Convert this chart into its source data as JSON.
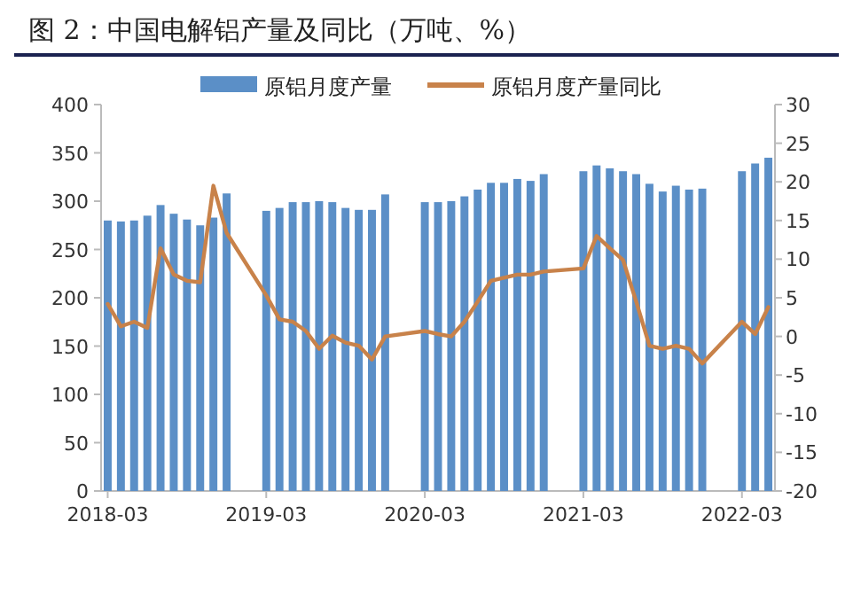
{
  "chart_data": {
    "type": "bar",
    "title": "图 2：中国电解铝产量及同比（万吨、%）",
    "categories": [
      "2018-03",
      null,
      null,
      null,
      null,
      null,
      null,
      null,
      null,
      null,
      null,
      null,
      "2019-03",
      null,
      null,
      null,
      null,
      null,
      null,
      null,
      null,
      null,
      null,
      null,
      "2020-03",
      null,
      null,
      null,
      null,
      null,
      null,
      null,
      null,
      null,
      null,
      null,
      "2021-03",
      null,
      null,
      null,
      null,
      null,
      null,
      null,
      null,
      null,
      null,
      null,
      "2022-03",
      null,
      null
    ],
    "series": [
      {
        "name": "原铝月度产量",
        "type": "bar",
        "color": "#5b8fc7",
        "values": [
          280,
          279,
          280,
          285,
          296,
          287,
          281,
          275,
          283,
          308,
          null,
          null,
          290,
          293,
          299,
          299,
          300,
          299,
          293,
          291,
          291,
          307,
          null,
          null,
          299,
          299,
          300,
          305,
          312,
          319,
          319,
          323,
          321,
          328,
          null,
          null,
          331,
          337,
          334,
          331,
          328,
          318,
          310,
          316,
          312,
          313,
          null,
          null,
          331,
          339,
          345
        ]
      },
      {
        "name": "原铝月度产量同比",
        "type": "line",
        "axis": "y2",
        "color": "#c8824a",
        "values": [
          4.2,
          1.3,
          1.9,
          1.1,
          11.4,
          8.0,
          7.2,
          7.0,
          19.5,
          13.4,
          null,
          null,
          5.3,
          2.2,
          1.9,
          0.7,
          -1.6,
          0.1,
          -0.8,
          -1.2,
          -3.0,
          0.0,
          null,
          null,
          0.7,
          0.3,
          0.0,
          1.9,
          4.5,
          7.2,
          7.6,
          8.0,
          8.0,
          8.4,
          null,
          null,
          8.8,
          13.0,
          11.4,
          9.9,
          4.5,
          -1.2,
          -1.6,
          -1.2,
          -1.6,
          -3.5,
          null,
          null,
          1.9,
          0.3,
          3.8
        ]
      }
    ],
    "ylim": [
      0,
      400
    ],
    "yticks": [
      0,
      50,
      100,
      150,
      200,
      250,
      300,
      350,
      400
    ],
    "y2lim": [
      -20,
      30
    ],
    "y2ticks": [
      -20,
      -15,
      -10,
      -5,
      0,
      5,
      10,
      15,
      20,
      25,
      30
    ],
    "legend": "top"
  }
}
